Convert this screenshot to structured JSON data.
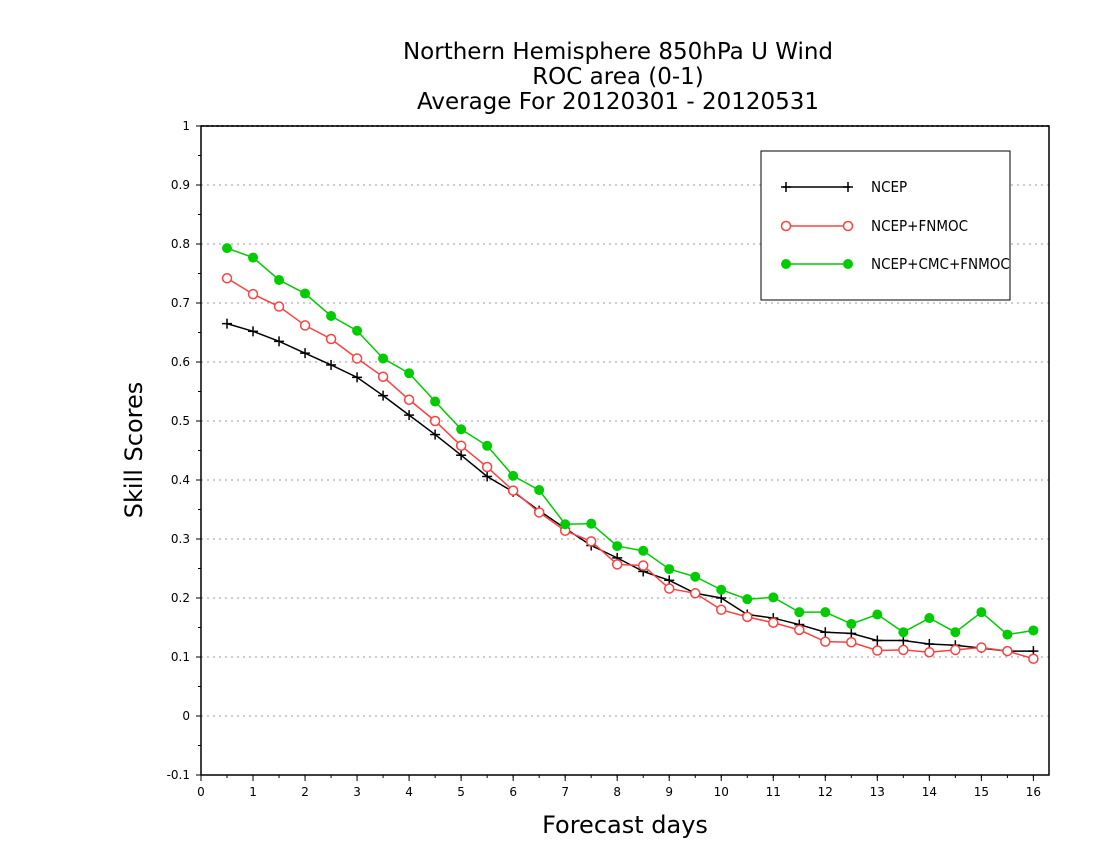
{
  "chart_data": {
    "type": "line",
    "title_lines": [
      "Northern Hemisphere 850hPa U Wind",
      "ROC area (0-1)",
      "Average For 20120301 - 20120531"
    ],
    "xlabel": "Forecast days",
    "ylabel": "Skill Scores",
    "xlim": [
      0,
      16.3
    ],
    "ylim": [
      -0.1,
      1
    ],
    "x_ticks": [
      0,
      1,
      2,
      3,
      4,
      5,
      6,
      7,
      8,
      9,
      10,
      11,
      12,
      13,
      14,
      15,
      16
    ],
    "x_tick_labels": [
      "0",
      "1",
      "2",
      "3",
      "4",
      "5",
      "6",
      "7",
      "8",
      "9",
      "10",
      "11",
      "12",
      "13",
      "14",
      "15",
      "16"
    ],
    "y_ticks": [
      -0.1,
      0,
      0.1,
      0.2,
      0.3,
      0.4,
      0.5,
      0.6,
      0.7,
      0.8,
      0.9,
      1
    ],
    "y_tick_labels": [
      "-0.1",
      "0",
      "0.1",
      "0.2",
      "0.3",
      "0.4",
      "0.5",
      "0.6",
      "0.7",
      "0.8",
      "0.9",
      "1"
    ],
    "grid": "horizontal-dotted",
    "legend_position": "top-right",
    "x": [
      0.5,
      1,
      1.5,
      2,
      2.5,
      3,
      3.5,
      4,
      4.5,
      5,
      5.5,
      6,
      6.5,
      7,
      7.5,
      8,
      8.5,
      9,
      9.5,
      10,
      10.5,
      11,
      11.5,
      12,
      12.5,
      13,
      13.5,
      14,
      14.5,
      15,
      15.5,
      16
    ],
    "series": [
      {
        "name": "NCEP",
        "color": "#000000",
        "marker": "plus",
        "values": [
          0.665,
          0.652,
          0.635,
          0.615,
          0.595,
          0.574,
          0.543,
          0.51,
          0.477,
          0.442,
          0.406,
          0.38,
          0.348,
          0.318,
          0.289,
          0.268,
          0.245,
          0.23,
          0.208,
          0.2,
          0.172,
          0.166,
          0.155,
          0.142,
          0.14,
          0.128,
          0.128,
          0.122,
          0.12,
          0.115,
          0.11,
          0.11
        ]
      },
      {
        "name": "NCEP+FNMOC",
        "color": "#ff4040",
        "marker": "circle-open",
        "values": [
          0.742,
          0.715,
          0.694,
          0.662,
          0.639,
          0.606,
          0.575,
          0.536,
          0.5,
          0.458,
          0.422,
          0.382,
          0.345,
          0.314,
          0.296,
          0.257,
          0.255,
          0.216,
          0.208,
          0.18,
          0.168,
          0.158,
          0.146,
          0.126,
          0.125,
          0.111,
          0.112,
          0.108,
          0.112,
          0.116,
          0.11,
          0.097
        ]
      },
      {
        "name": "NCEP+CMC+FNMOC",
        "color": "#00cc00",
        "marker": "circle-filled",
        "values": [
          0.793,
          0.777,
          0.739,
          0.716,
          0.678,
          0.653,
          0.606,
          0.581,
          0.533,
          0.486,
          0.458,
          0.407,
          0.383,
          0.325,
          0.326,
          0.288,
          0.28,
          0.249,
          0.236,
          0.214,
          0.198,
          0.201,
          0.176,
          0.176,
          0.156,
          0.172,
          0.142,
          0.166,
          0.142,
          0.176,
          0.138,
          0.145
        ]
      }
    ]
  }
}
